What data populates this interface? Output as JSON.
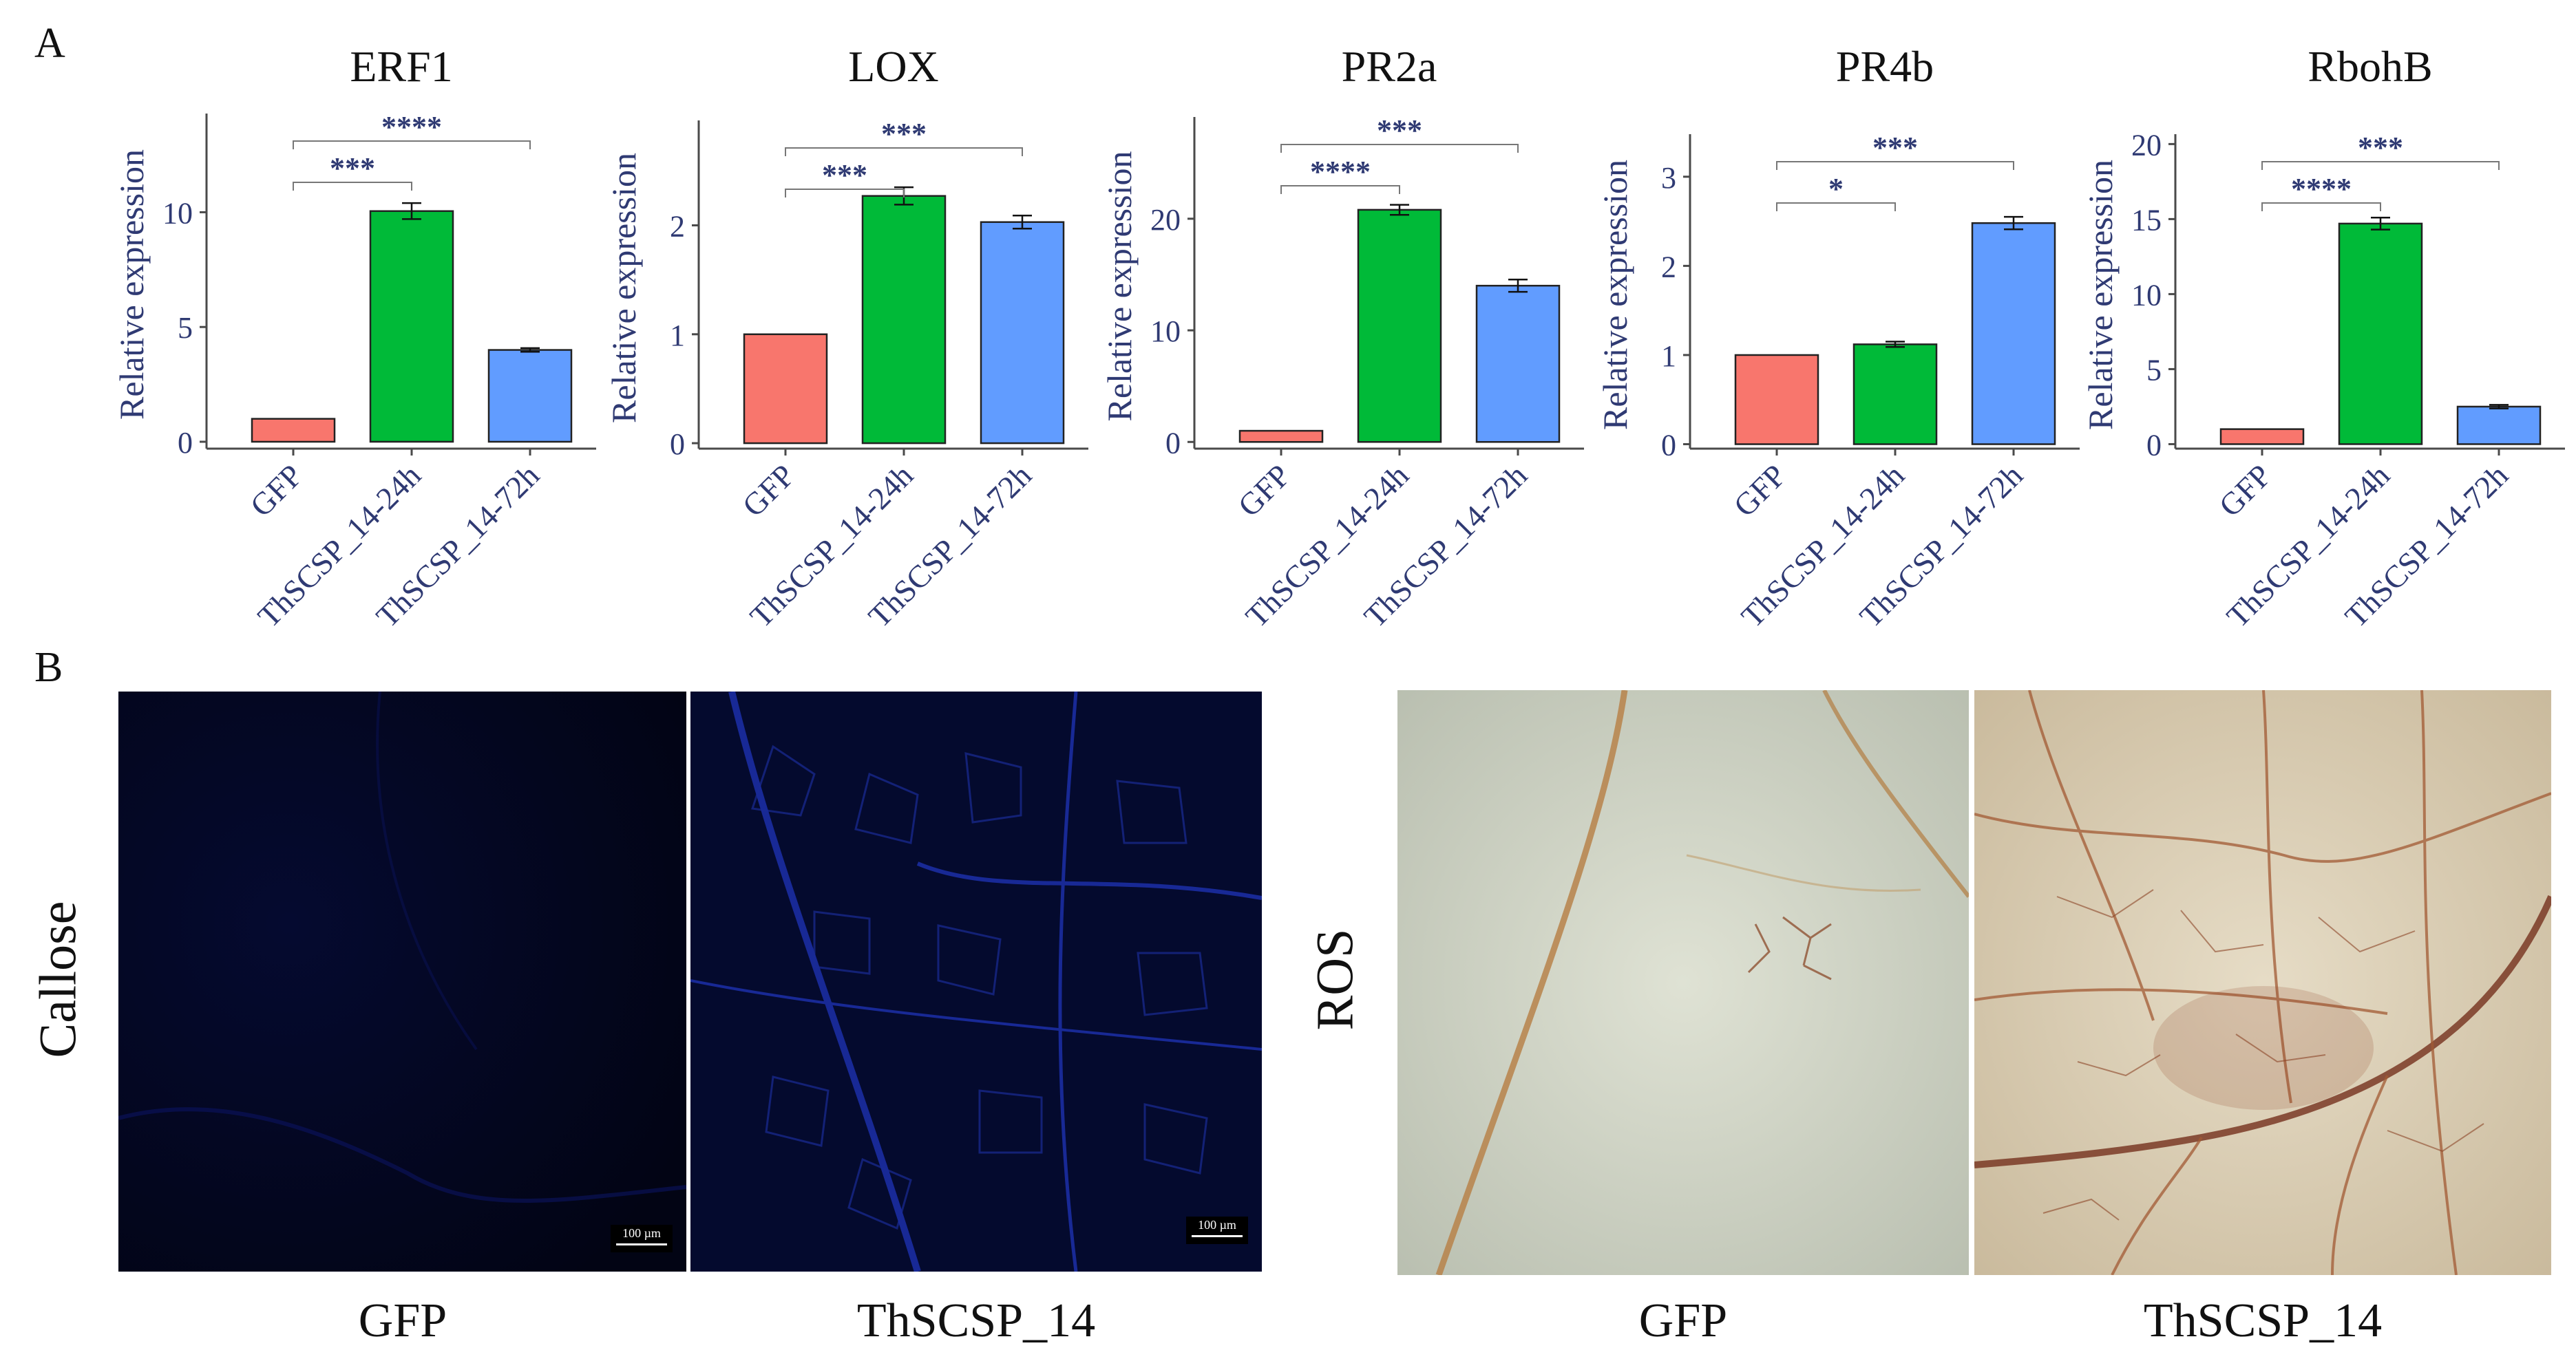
{
  "panel_a_label": "A",
  "panel_b_label": "B",
  "chart_data": [
    {
      "type": "bar",
      "title": "ERF1",
      "ylabel": "Relative expression",
      "categories": [
        "GFP",
        "ThSCSP_14-24h",
        "ThSCSP_14-72h"
      ],
      "values": [
        1,
        10.05,
        4.0
      ],
      "errors": [
        0,
        0.35,
        0.08
      ],
      "colors": [
        "#f8766d",
        "#00ba38",
        "#619cff"
      ],
      "ylim": [
        -0.3,
        14
      ],
      "yticks": [
        0,
        5,
        10
      ],
      "significance": [
        {
          "from": 0,
          "to": 1,
          "label": "***"
        },
        {
          "from": 0,
          "to": 2,
          "label": "****"
        }
      ]
    },
    {
      "type": "bar",
      "title": "LOX",
      "ylabel": "Relative expression",
      "categories": [
        "GFP",
        "ThSCSP_14-24h",
        "ThSCSP_14-72h"
      ],
      "values": [
        1,
        2.27,
        2.03
      ],
      "errors": [
        0,
        0.08,
        0.06
      ],
      "colors": [
        "#f8766d",
        "#00ba38",
        "#619cff"
      ],
      "ylim": [
        -0.05,
        2.9
      ],
      "yticks": [
        0,
        1,
        2
      ],
      "significance": [
        {
          "from": 0,
          "to": 1,
          "label": "***"
        },
        {
          "from": 0,
          "to": 2,
          "label": "***"
        }
      ]
    },
    {
      "type": "bar",
      "title": "PR2a",
      "ylabel": "Relative expression",
      "categories": [
        "GFP",
        "ThSCSP_14-24h",
        "ThSCSP_14-72h"
      ],
      "values": [
        1,
        20.8,
        14.0
      ],
      "errors": [
        0,
        0.45,
        0.55
      ],
      "colors": [
        "#f8766d",
        "#00ba38",
        "#619cff"
      ],
      "ylim": [
        -0.6,
        28.5
      ],
      "yticks": [
        0,
        10,
        20
      ],
      "significance": [
        {
          "from": 0,
          "to": 1,
          "label": "****"
        },
        {
          "from": 0,
          "to": 2,
          "label": "***"
        }
      ]
    },
    {
      "type": "bar",
      "title": "PR4b",
      "ylabel": "Relative expression",
      "categories": [
        "GFP",
        "ThSCSP_14-24h",
        "ThSCSP_14-72h"
      ],
      "values": [
        1,
        1.12,
        2.48
      ],
      "errors": [
        0,
        0.03,
        0.07
      ],
      "colors": [
        "#f8766d",
        "#00ba38",
        "#619cff"
      ],
      "ylim": [
        -0.05,
        3.4
      ],
      "yticks": [
        0,
        1,
        2,
        3
      ],
      "significance": [
        {
          "from": 0,
          "to": 1,
          "label": "*"
        },
        {
          "from": 0,
          "to": 2,
          "label": "***"
        }
      ]
    },
    {
      "type": "bar",
      "title": "RbohB",
      "ylabel": "Relative expression",
      "categories": [
        "GFP",
        "ThSCSP_14-24h",
        "ThSCSP_14-72h"
      ],
      "values": [
        1,
        14.7,
        2.5
      ],
      "errors": [
        0,
        0.4,
        0.12
      ],
      "colors": [
        "#f8766d",
        "#00ba38",
        "#619cff"
      ],
      "ylim": [
        -0.3,
        20.2
      ],
      "yticks": [
        0,
        5,
        10,
        15,
        20
      ],
      "significance": [
        {
          "from": 0,
          "to": 1,
          "label": "****"
        },
        {
          "from": 0,
          "to": 2,
          "label": "***"
        }
      ]
    }
  ],
  "panel_b": {
    "callose_label": "Callose",
    "ros_label": "ROS",
    "scale_bar_text": "100 µm",
    "captions": [
      "GFP",
      "ThSCSP_14",
      "GFP",
      "ThSCSP_14"
    ]
  }
}
